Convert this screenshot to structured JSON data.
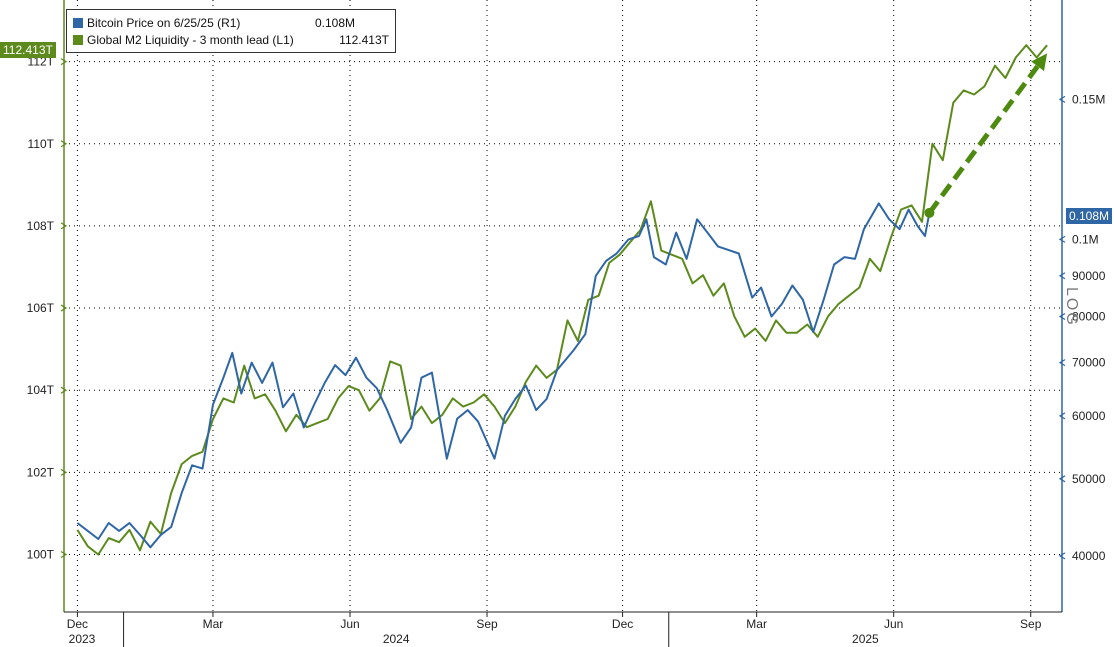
{
  "legend": {
    "btc_label": "Bitcoin Price on 6/25/25 (R1)",
    "btc_value": "0.108M",
    "m2_label": "Global M2 Liquidity - 3 month lead (L1)",
    "m2_value": "112.413T"
  },
  "badges": {
    "left_value": "112.413T",
    "right_value": "0.108M"
  },
  "log_text": "LOG",
  "colors": {
    "btc": "#2f66a6",
    "m2": "#5d8a1c",
    "arrow": "#4f8a10"
  },
  "chart_data": {
    "type": "line",
    "x_axis": {
      "months": [
        "Dec",
        "Mar",
        "Jun",
        "Sep",
        "Dec",
        "Mar",
        "Jun",
        "Sep"
      ],
      "years": [
        "2023",
        "2024",
        "2025"
      ]
    },
    "y_left": {
      "ticks": [
        "100T",
        "102T",
        "104T",
        "106T",
        "108T",
        "110T",
        "112T"
      ],
      "range": [
        98.6,
        113.5
      ]
    },
    "y_right": {
      "scale": "log",
      "ticks": [
        "40000",
        "50000",
        "60000",
        "70000",
        "80000",
        "90000",
        "0.1M",
        "0.15M"
      ],
      "range": [
        34000,
        200000
      ]
    },
    "series": [
      {
        "name": "Bitcoin Price on 6/25/25 (R1)",
        "axis": "right",
        "points": [
          [
            "2023-12-01",
            44000
          ],
          [
            "2023-12-08",
            43000
          ],
          [
            "2023-12-15",
            42000
          ],
          [
            "2023-12-22",
            44000
          ],
          [
            "2023-12-29",
            43000
          ],
          [
            "2024-01-05",
            44000
          ],
          [
            "2024-01-12",
            42500
          ],
          [
            "2024-01-19",
            41000
          ],
          [
            "2024-01-26",
            42500
          ],
          [
            "2024-02-02",
            43500
          ],
          [
            "2024-02-09",
            48000
          ],
          [
            "2024-02-16",
            52000
          ],
          [
            "2024-02-23",
            51500
          ],
          [
            "2024-03-01",
            62000
          ],
          [
            "2024-03-08",
            67000
          ],
          [
            "2024-03-14",
            72000
          ],
          [
            "2024-03-20",
            64000
          ],
          [
            "2024-03-27",
            70000
          ],
          [
            "2024-04-03",
            66000
          ],
          [
            "2024-04-10",
            70000
          ],
          [
            "2024-04-17",
            61500
          ],
          [
            "2024-04-24",
            64000
          ],
          [
            "2024-05-01",
            58000
          ],
          [
            "2024-05-08",
            62000
          ],
          [
            "2024-05-15",
            66000
          ],
          [
            "2024-05-22",
            69500
          ],
          [
            "2024-05-29",
            67500
          ],
          [
            "2024-06-05",
            71000
          ],
          [
            "2024-06-12",
            67000
          ],
          [
            "2024-06-19",
            65000
          ],
          [
            "2024-06-26",
            61000
          ],
          [
            "2024-07-05",
            55500
          ],
          [
            "2024-07-12",
            58000
          ],
          [
            "2024-07-19",
            67000
          ],
          [
            "2024-07-26",
            68000
          ],
          [
            "2024-08-05",
            53000
          ],
          [
            "2024-08-12",
            59500
          ],
          [
            "2024-08-19",
            61000
          ],
          [
            "2024-08-26",
            59000
          ],
          [
            "2024-09-06",
            53000
          ],
          [
            "2024-09-13",
            60000
          ],
          [
            "2024-09-20",
            63000
          ],
          [
            "2024-09-27",
            65500
          ],
          [
            "2024-10-04",
            61000
          ],
          [
            "2024-10-11",
            63000
          ],
          [
            "2024-10-18",
            68500
          ],
          [
            "2024-10-29",
            72500
          ],
          [
            "2024-11-06",
            76000
          ],
          [
            "2024-11-13",
            90000
          ],
          [
            "2024-11-20",
            94000
          ],
          [
            "2024-11-27",
            96000
          ],
          [
            "2024-12-05",
            100000
          ],
          [
            "2024-12-12",
            101000
          ],
          [
            "2024-12-17",
            106000
          ],
          [
            "2024-12-22",
            95000
          ],
          [
            "2024-12-30",
            93000
          ],
          [
            "2025-01-06",
            102000
          ],
          [
            "2025-01-13",
            94500
          ],
          [
            "2025-01-20",
            106000
          ],
          [
            "2025-01-27",
            102000
          ],
          [
            "2025-02-03",
            98000
          ],
          [
            "2025-02-10",
            97000
          ],
          [
            "2025-02-17",
            96000
          ],
          [
            "2025-02-26",
            84500
          ],
          [
            "2025-03-04",
            87000
          ],
          [
            "2025-03-11",
            80000
          ],
          [
            "2025-03-18",
            83000
          ],
          [
            "2025-03-25",
            87500
          ],
          [
            "2025-04-01",
            84000
          ],
          [
            "2025-04-08",
            76500
          ],
          [
            "2025-04-15",
            84000
          ],
          [
            "2025-04-22",
            93000
          ],
          [
            "2025-04-29",
            95000
          ],
          [
            "2025-05-06",
            94500
          ],
          [
            "2025-05-12",
            103000
          ],
          [
            "2025-05-22",
            111000
          ],
          [
            "2025-05-29",
            106000
          ],
          [
            "2025-06-05",
            103000
          ],
          [
            "2025-06-11",
            109000
          ],
          [
            "2025-06-17",
            104000
          ],
          [
            "2025-06-22",
            101000
          ],
          [
            "2025-06-25",
            108000
          ]
        ]
      },
      {
        "name": "Global M2 Liquidity - 3 month lead (L1)",
        "axis": "left",
        "points": [
          [
            "2023-12-01",
            100.6
          ],
          [
            "2023-12-08",
            100.2
          ],
          [
            "2023-12-15",
            100.0
          ],
          [
            "2023-12-22",
            100.4
          ],
          [
            "2023-12-29",
            100.3
          ],
          [
            "2024-01-05",
            100.6
          ],
          [
            "2024-01-12",
            100.1
          ],
          [
            "2024-01-19",
            100.8
          ],
          [
            "2024-01-26",
            100.5
          ],
          [
            "2024-02-02",
            101.5
          ],
          [
            "2024-02-09",
            102.2
          ],
          [
            "2024-02-16",
            102.4
          ],
          [
            "2024-02-23",
            102.5
          ],
          [
            "2024-03-01",
            103.3
          ],
          [
            "2024-03-08",
            103.8
          ],
          [
            "2024-03-15",
            103.7
          ],
          [
            "2024-03-22",
            104.6
          ],
          [
            "2024-03-29",
            103.8
          ],
          [
            "2024-04-05",
            103.9
          ],
          [
            "2024-04-12",
            103.5
          ],
          [
            "2024-04-19",
            103.0
          ],
          [
            "2024-04-26",
            103.4
          ],
          [
            "2024-05-03",
            103.1
          ],
          [
            "2024-05-10",
            103.2
          ],
          [
            "2024-05-17",
            103.3
          ],
          [
            "2024-05-24",
            103.8
          ],
          [
            "2024-05-31",
            104.1
          ],
          [
            "2024-06-07",
            104.0
          ],
          [
            "2024-06-14",
            103.5
          ],
          [
            "2024-06-21",
            103.8
          ],
          [
            "2024-06-28",
            104.7
          ],
          [
            "2024-07-05",
            104.6
          ],
          [
            "2024-07-12",
            103.3
          ],
          [
            "2024-07-19",
            103.6
          ],
          [
            "2024-07-26",
            103.2
          ],
          [
            "2024-08-02",
            103.4
          ],
          [
            "2024-08-09",
            103.8
          ],
          [
            "2024-08-16",
            103.6
          ],
          [
            "2024-08-23",
            103.7
          ],
          [
            "2024-08-30",
            103.9
          ],
          [
            "2024-09-06",
            103.6
          ],
          [
            "2024-09-13",
            103.2
          ],
          [
            "2024-09-20",
            103.6
          ],
          [
            "2024-09-27",
            104.2
          ],
          [
            "2024-10-04",
            104.6
          ],
          [
            "2024-10-11",
            104.3
          ],
          [
            "2024-10-18",
            104.5
          ],
          [
            "2024-10-25",
            105.7
          ],
          [
            "2024-11-01",
            105.2
          ],
          [
            "2024-11-08",
            106.2
          ],
          [
            "2024-11-15",
            106.3
          ],
          [
            "2024-11-22",
            107.1
          ],
          [
            "2024-11-29",
            107.3
          ],
          [
            "2024-12-06",
            107.6
          ],
          [
            "2024-12-13",
            107.9
          ],
          [
            "2024-12-20",
            108.6
          ],
          [
            "2024-12-27",
            107.4
          ],
          [
            "2025-01-03",
            107.3
          ],
          [
            "2025-01-10",
            107.2
          ],
          [
            "2025-01-17",
            106.6
          ],
          [
            "2025-01-24",
            106.8
          ],
          [
            "2025-01-31",
            106.3
          ],
          [
            "2025-02-07",
            106.6
          ],
          [
            "2025-02-14",
            105.8
          ],
          [
            "2025-02-21",
            105.3
          ],
          [
            "2025-02-28",
            105.5
          ],
          [
            "2025-03-07",
            105.2
          ],
          [
            "2025-03-14",
            105.7
          ],
          [
            "2025-03-21",
            105.4
          ],
          [
            "2025-03-28",
            105.4
          ],
          [
            "2025-04-04",
            105.6
          ],
          [
            "2025-04-11",
            105.3
          ],
          [
            "2025-04-18",
            105.8
          ],
          [
            "2025-04-25",
            106.1
          ],
          [
            "2025-05-02",
            106.3
          ],
          [
            "2025-05-09",
            106.5
          ],
          [
            "2025-05-16",
            107.2
          ],
          [
            "2025-05-23",
            106.9
          ],
          [
            "2025-05-30",
            107.7
          ],
          [
            "2025-06-06",
            108.4
          ],
          [
            "2025-06-13",
            108.5
          ],
          [
            "2025-06-20",
            108.1
          ],
          [
            "2025-06-27",
            110.0
          ],
          [
            "2025-07-04",
            109.6
          ],
          [
            "2025-07-11",
            111.0
          ],
          [
            "2025-07-18",
            111.3
          ],
          [
            "2025-07-25",
            111.2
          ],
          [
            "2025-08-01",
            111.4
          ],
          [
            "2025-08-08",
            111.9
          ],
          [
            "2025-08-15",
            111.6
          ],
          [
            "2025-08-22",
            112.1
          ],
          [
            "2025-08-29",
            112.4
          ],
          [
            "2025-09-05",
            112.1
          ],
          [
            "2025-09-12",
            112.4
          ]
        ]
      }
    ],
    "annotations": [
      {
        "type": "dashed-arrow",
        "from": [
          "2025-06-25",
          108000
        ],
        "from_axis": "right",
        "to": [
          "2025-09-12",
          112.2
        ],
        "to_axis": "left"
      }
    ],
    "grid": true
  }
}
